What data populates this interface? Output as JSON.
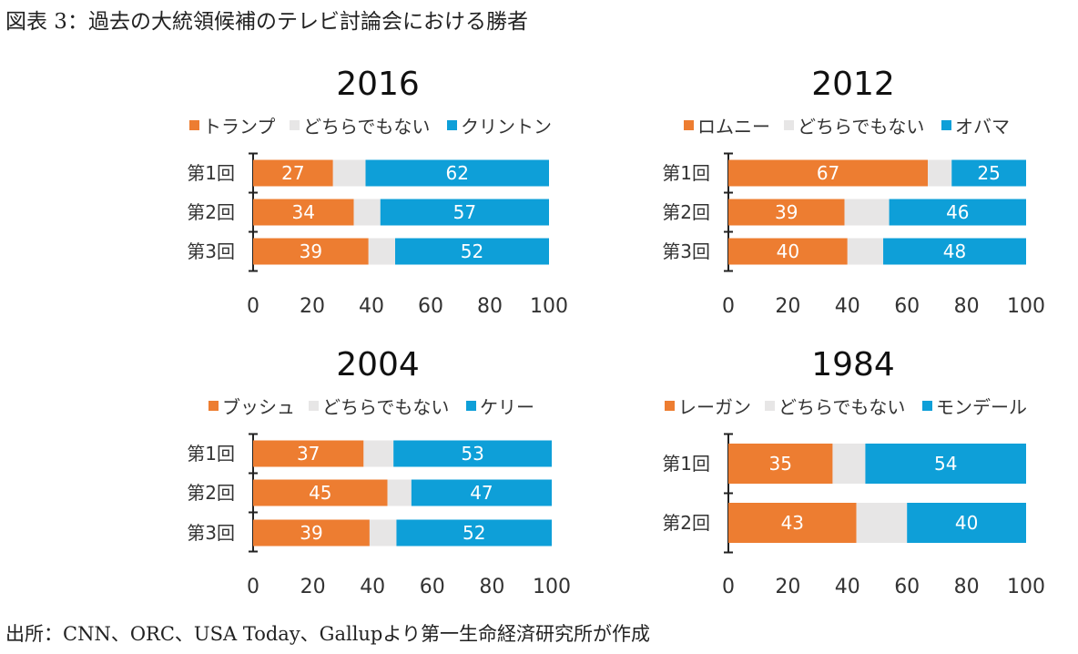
{
  "figure_title": "図表 3：過去の大統領候補のテレビ討論会における勝者",
  "source": "出所：CNN、ORC、USA Today、Gallupより第一生命経済研究所が作成",
  "colors": {
    "candidate_a": "#ED7D31",
    "neither": "#E7E6E6",
    "candidate_b": "#0E9FD8"
  },
  "chart_data": [
    {
      "type": "bar",
      "stacked": true,
      "orientation": "horizontal",
      "title": "2016",
      "legend": [
        "トランプ",
        "どちらでもない",
        "クリントン"
      ],
      "legend_placement": "top",
      "categories": [
        "第1回",
        "第2回",
        "第3回"
      ],
      "series": [
        {
          "name": "トランプ",
          "values": [
            27,
            34,
            39
          ]
        },
        {
          "name": "どちらでもない",
          "values": [
            11,
            9,
            9
          ]
        },
        {
          "name": "クリントン",
          "values": [
            62,
            57,
            52
          ]
        }
      ],
      "xlim": [
        0,
        100
      ],
      "xticks": [
        "0",
        "20",
        "40",
        "60",
        "80",
        "100"
      ],
      "grid": false
    },
    {
      "type": "bar",
      "stacked": true,
      "orientation": "horizontal",
      "title": "2012",
      "legend": [
        "ロムニー",
        "どちらでもない",
        "オバマ"
      ],
      "legend_placement": "top",
      "categories": [
        "第1回",
        "第2回",
        "第3回"
      ],
      "series": [
        {
          "name": "ロムニー",
          "values": [
            67,
            39,
            40
          ]
        },
        {
          "name": "どちらでもない",
          "values": [
            8,
            15,
            12
          ]
        },
        {
          "name": "オバマ",
          "values": [
            25,
            46,
            48
          ]
        }
      ],
      "xlim": [
        0,
        100
      ],
      "xticks": [
        "0",
        "20",
        "40",
        "60",
        "80",
        "100"
      ],
      "grid": false
    },
    {
      "type": "bar",
      "stacked": true,
      "orientation": "horizontal",
      "title": "2004",
      "legend": [
        "ブッシュ",
        "どちらでもない",
        "ケリー"
      ],
      "legend_placement": "top",
      "categories": [
        "第1回",
        "第2回",
        "第3回"
      ],
      "series": [
        {
          "name": "ブッシュ",
          "values": [
            37,
            45,
            39
          ]
        },
        {
          "name": "どちらでもない",
          "values": [
            10,
            8,
            9
          ]
        },
        {
          "name": "ケリー",
          "values": [
            53,
            47,
            52
          ]
        }
      ],
      "xlim": [
        0,
        100
      ],
      "xticks": [
        "0",
        "20",
        "40",
        "60",
        "80",
        "100"
      ],
      "grid": false
    },
    {
      "type": "bar",
      "stacked": true,
      "orientation": "horizontal",
      "title": "1984",
      "legend": [
        "レーガン",
        "どちらでもない",
        "モンデール"
      ],
      "legend_placement": "top",
      "categories": [
        "第1回",
        "第2回"
      ],
      "series": [
        {
          "name": "レーガン",
          "values": [
            35,
            43
          ]
        },
        {
          "name": "どちらでもない",
          "values": [
            11,
            17
          ]
        },
        {
          "name": "モンデール",
          "values": [
            54,
            40
          ]
        }
      ],
      "xlim": [
        0,
        100
      ],
      "xticks": [
        "0",
        "20",
        "40",
        "60",
        "80",
        "100"
      ],
      "grid": false
    }
  ]
}
